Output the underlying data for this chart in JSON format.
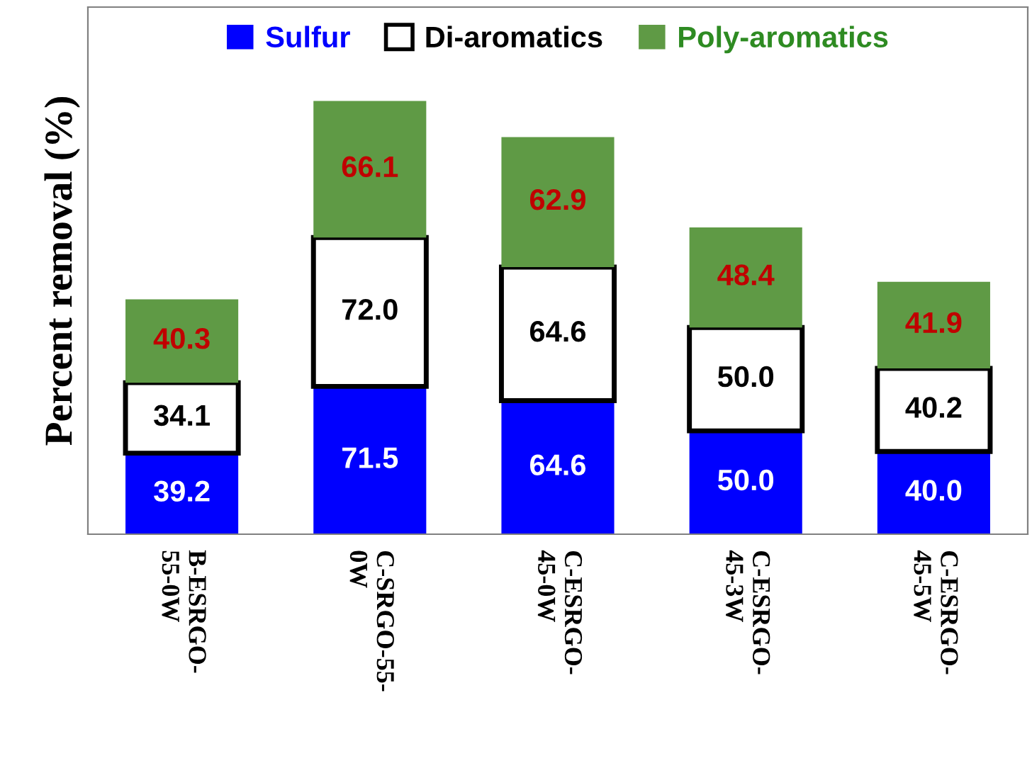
{
  "chart_data": {
    "type": "bar",
    "stacked": true,
    "ylabel": "Percent removal (%)",
    "categories": [
      "B-ESRGO-\n55-0W",
      "C-SRGO-55-\n0W",
      "C-ESRGO-\n45-0W",
      "C-ESRGO-\n45-3W",
      "C-ESRGO-\n45-5W"
    ],
    "series": [
      {
        "name": "Sulfur",
        "color": "#0000ff",
        "values": [
          39.2,
          71.5,
          64.6,
          50.0,
          40.0
        ],
        "value_labels": [
          "39.2",
          "71.5",
          "64.6",
          "50.0",
          "40.0"
        ]
      },
      {
        "name": "Di-aromatics",
        "color": "#ffffff",
        "values": [
          34.1,
          72.0,
          64.6,
          50.0,
          40.2
        ],
        "value_labels": [
          "34.1",
          "72.0",
          "64.6",
          "50.0",
          "40.2"
        ]
      },
      {
        "name": "Poly-aromatics",
        "color": "#5f9a45",
        "values": [
          40.3,
          66.1,
          62.9,
          48.4,
          41.9
        ],
        "value_labels": [
          "40.3",
          "66.1",
          "62.9",
          "48.4",
          "41.9"
        ]
      }
    ],
    "ylim": [
      0,
      255
    ],
    "tick_labels": "x",
    "legend": "top",
    "grid": false
  }
}
